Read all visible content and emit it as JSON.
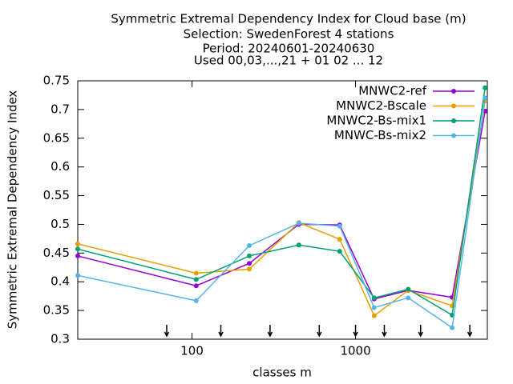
{
  "chart_data": {
    "type": "line",
    "title": [
      "Symmetric Extremal Dependency Index  for Cloud base (m)",
      "Selection: SwedenForest      4 stations",
      "Period: 20240601-20240630",
      "Used 00,03,...,21 + 01 02 ... 12"
    ],
    "x_label": "classes m",
    "y_label": "Symmetric Extremal Dependency Index",
    "x": [
      20,
      106,
      224,
      450,
      800,
      1300,
      2100,
      3900,
      6200
    ],
    "xlim": [
      20,
      6400
    ],
    "xscale": "log",
    "xticks": [
      100,
      1000
    ],
    "ylim": [
      0.3,
      0.75
    ],
    "yticks": [
      0.3,
      0.35,
      0.4,
      0.45,
      0.5,
      0.55,
      0.6,
      0.65,
      0.7,
      0.75
    ],
    "arrows": [
      70,
      150,
      300,
      600,
      1000,
      1500,
      2500,
      5000
    ],
    "legend": "top-right",
    "series": [
      {
        "name": "MNWC2-ref",
        "color": "#9400d3",
        "values": [
          0.445,
          0.393,
          0.432,
          0.5,
          0.499,
          0.37,
          0.385,
          0.373,
          0.697
        ]
      },
      {
        "name": "MNWC2-Bscale",
        "color": "#e69f00",
        "values": [
          0.466,
          0.415,
          0.422,
          0.503,
          0.474,
          0.341,
          0.385,
          0.358,
          0.715
        ]
      },
      {
        "name": "MNWC2-Bs-mix1",
        "color": "#009e73",
        "values": [
          0.457,
          0.404,
          0.445,
          0.464,
          0.453,
          0.372,
          0.387,
          0.342,
          0.738
        ]
      },
      {
        "name": "MNWC-Bs-mix2",
        "color": "#56b4e9",
        "values": [
          0.411,
          0.367,
          0.463,
          0.502,
          0.497,
          0.355,
          0.372,
          0.32,
          0.72
        ]
      }
    ]
  }
}
